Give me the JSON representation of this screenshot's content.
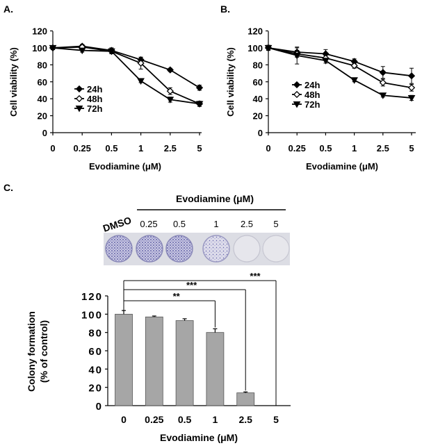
{
  "chart_data": [
    {
      "panel_label": "A.",
      "type": "line",
      "categories": [
        "0",
        "0.25",
        "0.5",
        "1",
        "2.5",
        "5"
      ],
      "series": [
        {
          "name": "24h",
          "marker": "diamond-filled",
          "values": [
            100,
            102,
            97,
            86,
            74,
            53
          ],
          "errors": [
            2,
            2,
            3,
            3,
            2,
            3
          ]
        },
        {
          "name": "48h",
          "marker": "diamond-open",
          "values": [
            100,
            101,
            96,
            82,
            49,
            34
          ],
          "errors": [
            2,
            3,
            3,
            7,
            4,
            3
          ]
        },
        {
          "name": "72h",
          "marker": "triangle-down",
          "values": [
            100,
            97,
            96,
            61,
            39,
            34
          ],
          "errors": [
            2,
            2,
            2,
            2,
            3,
            3
          ]
        }
      ],
      "ylabel": "Cell  viability (%)",
      "xlabel": "Evodiamine (μM)",
      "yticks": [
        0,
        20,
        40,
        60,
        80,
        100,
        120
      ],
      "ylim": [
        0,
        120
      ],
      "legend_position": "lower-left"
    },
    {
      "panel_label": "B.",
      "type": "line",
      "categories": [
        "0",
        "0.25",
        "0.5",
        "1",
        "2.5",
        "5"
      ],
      "series": [
        {
          "name": "24h",
          "marker": "diamond-filled",
          "values": [
            100,
            95,
            93,
            84,
            71,
            67
          ],
          "errors": [
            3,
            5,
            5,
            3,
            7,
            9
          ]
        },
        {
          "name": "48h",
          "marker": "diamond-open",
          "values": [
            100,
            93,
            88,
            79,
            59,
            53
          ],
          "errors": [
            3,
            4,
            3,
            3,
            4,
            4
          ]
        },
        {
          "name": "72h",
          "marker": "triangle-down",
          "values": [
            100,
            91,
            85,
            62,
            44,
            41
          ],
          "errors": [
            2,
            10,
            3,
            2,
            2,
            3
          ]
        }
      ],
      "ylabel": "Cell  viability (%)",
      "xlabel": "Evodiamine (μM)",
      "yticks": [
        0,
        20,
        40,
        60,
        80,
        100,
        120
      ],
      "ylim": [
        0,
        120
      ],
      "legend_position": "lower-left"
    },
    {
      "panel_label": "C.",
      "type": "bar",
      "categories": [
        "0",
        "0.25",
        "0.5",
        "1",
        "2.5",
        "5"
      ],
      "values": [
        100,
        97,
        93,
        80,
        14,
        0
      ],
      "errors": [
        4,
        1,
        2,
        4,
        1,
        0
      ],
      "ylabel_line1": "Colony formation",
      "ylabel_line2": "(% of control)",
      "xlabel": "Evodiamine (μM)",
      "yticks": [
        0,
        20,
        40,
        60,
        80,
        100,
        120
      ],
      "ylim": [
        0,
        120
      ],
      "significance": [
        {
          "compare": [
            "0",
            "1"
          ],
          "label": "**"
        },
        {
          "compare": [
            "0",
            "2.5"
          ],
          "label": "***"
        },
        {
          "compare": [
            "0",
            "5"
          ],
          "label": "***"
        }
      ]
    }
  ],
  "colony_image": {
    "header": "Evodiamine (μM)",
    "labels": [
      "DMSO",
      "0.25",
      "0.5",
      "1",
      "2.5",
      "5"
    ],
    "stain_color": "#5a5aa8"
  },
  "colors": {
    "line": "#000000",
    "bar_fill": "#a6a6a6",
    "plate_background": "#d9dbe3"
  }
}
